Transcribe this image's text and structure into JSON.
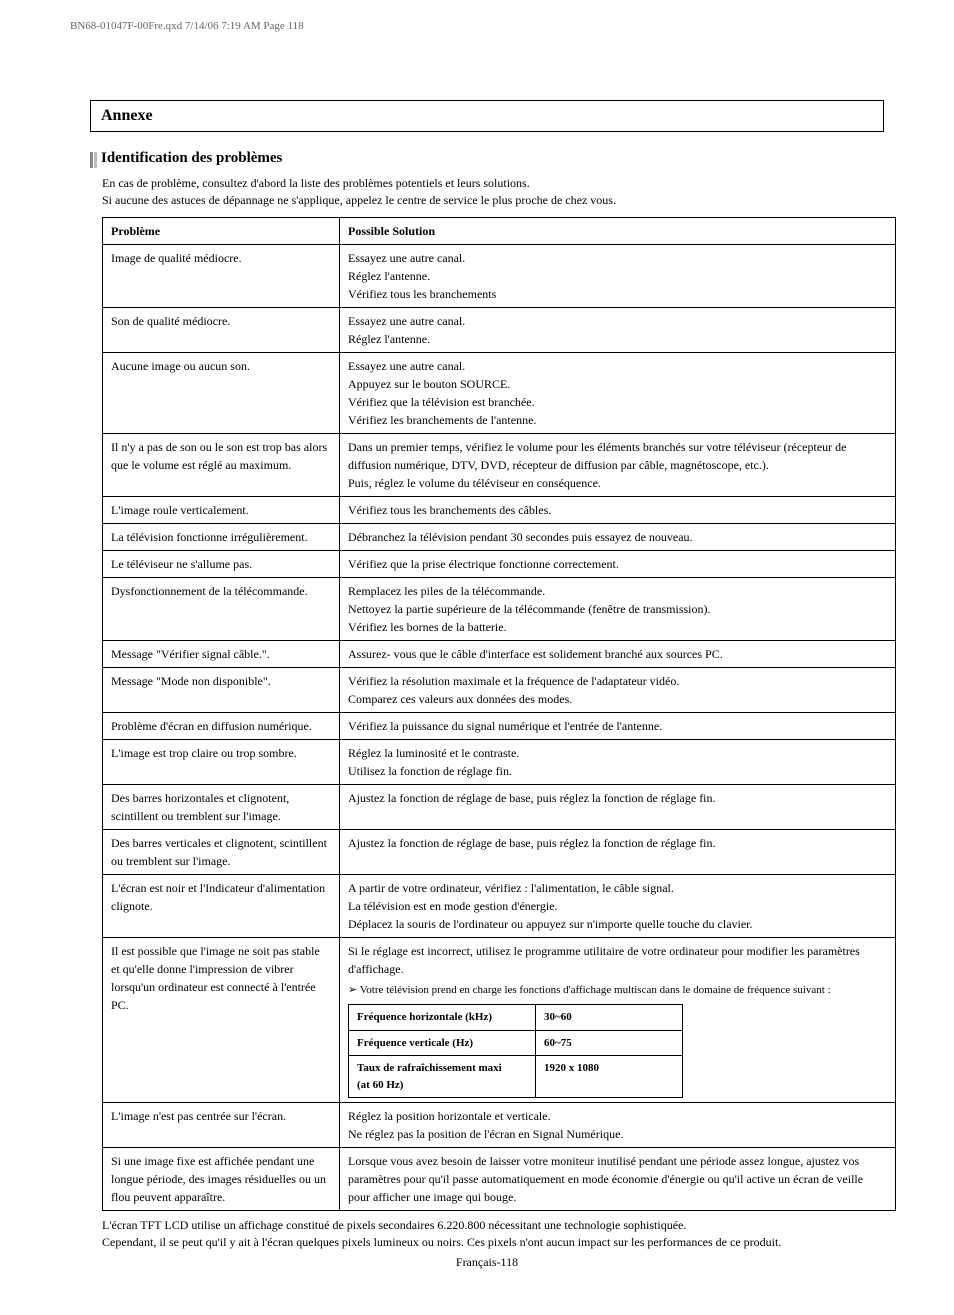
{
  "header_line": "BN68-01047F-00Fre.qxd  7/14/06  7:19 AM  Page 118",
  "section_title": "Annexe",
  "subsection_title": "Identification des problèmes",
  "intro_line1": "En cas de problème, consultez d'abord la liste des problèmes potentiels et leurs solutions.",
  "intro_line2": "Si aucune des astuces de dépannage ne s'applique, appelez le centre de service le plus proche de chez vous.",
  "table_head_problem": "Problème",
  "table_head_solution": "Possible Solution",
  "rows": [
    {
      "p": "Image de qualité médiocre.",
      "s": "Essayez une autre canal.\nRéglez l'antenne.\nVérifiez tous les branchements"
    },
    {
      "p": "Son de qualité médiocre.",
      "s": "Essayez une autre canal.\nRéglez l'antenne."
    },
    {
      "p": "Aucune image ou aucun son.",
      "s": "Essayez une autre canal.\nAppuyez sur le bouton SOURCE.\nVérifiez que la télévision est branchée.\nVérifiez les branchements de l'antenne."
    },
    {
      "p": "Il n'y a pas de son ou le son est trop bas alors que le volume est réglé au maximum.",
      "s": "Dans un premier temps, vérifiez le volume pour les éléments branchés sur votre téléviseur (récepteur de diffusion numérique, DTV, DVD, récepteur de diffusion par câble, magnétoscope, etc.).\nPuis, réglez le volume du téléviseur en conséquence."
    },
    {
      "p": "L'image roule verticalement.",
      "s": "Vérifiez tous les branchements des câbles."
    },
    {
      "p": "La télévision fonctionne irrégulièrement.",
      "s": "Débranchez la télévision pendant 30 secondes puis essayez de nouveau."
    },
    {
      "p": "Le téléviseur ne s'allume pas.",
      "s": "Vérifiez que la prise électrique fonctionne correctement."
    },
    {
      "p": "Dysfonctionnement de la télécommande.",
      "s": "Remplacez les piles de la télécommande.\nNettoyez la partie supérieure de la télécommande (fenêtre de transmission).\nVérifiez les bornes de la batterie."
    },
    {
      "p": "Message \"Vérifier signal câble.\".",
      "s": "Assurez- vous que le câble d'interface est solidement branché aux sources PC."
    },
    {
      "p": "Message \"Mode non disponible\".",
      "s": "Vérifiez la résolution maximale et la fréquence de l'adaptateur vidéo.\nComparez ces valeurs aux données des modes."
    },
    {
      "p": "Problème d'écran en diffusion numérique.",
      "s": "Vérifiez la puissance du signal numérique et l'entrée de l'antenne."
    },
    {
      "p": "L'image est trop claire ou trop sombre.",
      "s": "Réglez la luminosité et le contraste.\nUtilisez la fonction de réglage fin."
    },
    {
      "p": "Des barres horizontales et clignotent, scintillent ou tremblent sur l'image.",
      "s": "Ajustez la fonction de réglage de base, puis réglez la fonction de réglage fin."
    },
    {
      "p": "Des barres verticales et clignotent, scintillent ou tremblent sur l'image.",
      "s": "Ajustez la fonction de réglage de base, puis réglez la fonction de réglage fin."
    },
    {
      "p": "L'écran est noir et l'Indicateur d'alimentation clignote.",
      "s": "A partir de votre ordinateur, vérifiez : l'alimentation, le câble signal.\nLa télévision est en mode gestion d'énergie.\nDéplacez la souris de l'ordinateur ou appuyez sur n'importe quelle touche du clavier."
    }
  ],
  "row_pc_problem": "Il est possible que l'image ne soit pas stable et qu'elle donne l'impression de vibrer lorsqu'un ordinateur est connecté à l'entrée PC.",
  "row_pc_s1": "Si le réglage est incorrect, utilisez le programme utilitaire de votre ordinateur pour modifier les paramètres d'affichage.",
  "row_pc_bullet": "➢  Votre télévision prend en charge les fonctions d'affichage multiscan dans le domaine de fréquence suivant :",
  "inner_rows": [
    {
      "h": "Fréquence horizontale (kHz)",
      "v": "30~60"
    },
    {
      "h": "Fréquence verticale (Hz)",
      "v": "60~75"
    },
    {
      "h": "Taux de rafraîchissement maxi (at 60 Hz)",
      "v": "1920 x 1080"
    }
  ],
  "row_center_p": "L'image n'est pas centrée sur l'écran.",
  "row_center_s": "Réglez la position horizontale et verticale.\nNe réglez pas la position de l'écran en Signal Numérique.",
  "row_fixed_p": "Si une image fixe est affichée pendant une longue période, des images résiduelles ou un flou peuvent apparaître.",
  "row_fixed_s": "Lorsque vous avez besoin de laisser votre moniteur inutilisé pendant une période assez longue, ajustez vos paramètres pour qu'il passe automatiquement en mode économie d'énergie ou qu'il active un écran de veille pour afficher une image qui bouge.",
  "footnote1": "L'écran TFT LCD utilise un affichage constitué de pixels secondaires 6.220.800 nécessitant une technologie sophistiquée.",
  "footnote2": "Cependant, il se peut qu'il y ait à l'écran quelques pixels lumineux ou noirs. Ces pixels n'ont aucun impact sur les performances de ce produit.",
  "page_number": "Français-118"
}
